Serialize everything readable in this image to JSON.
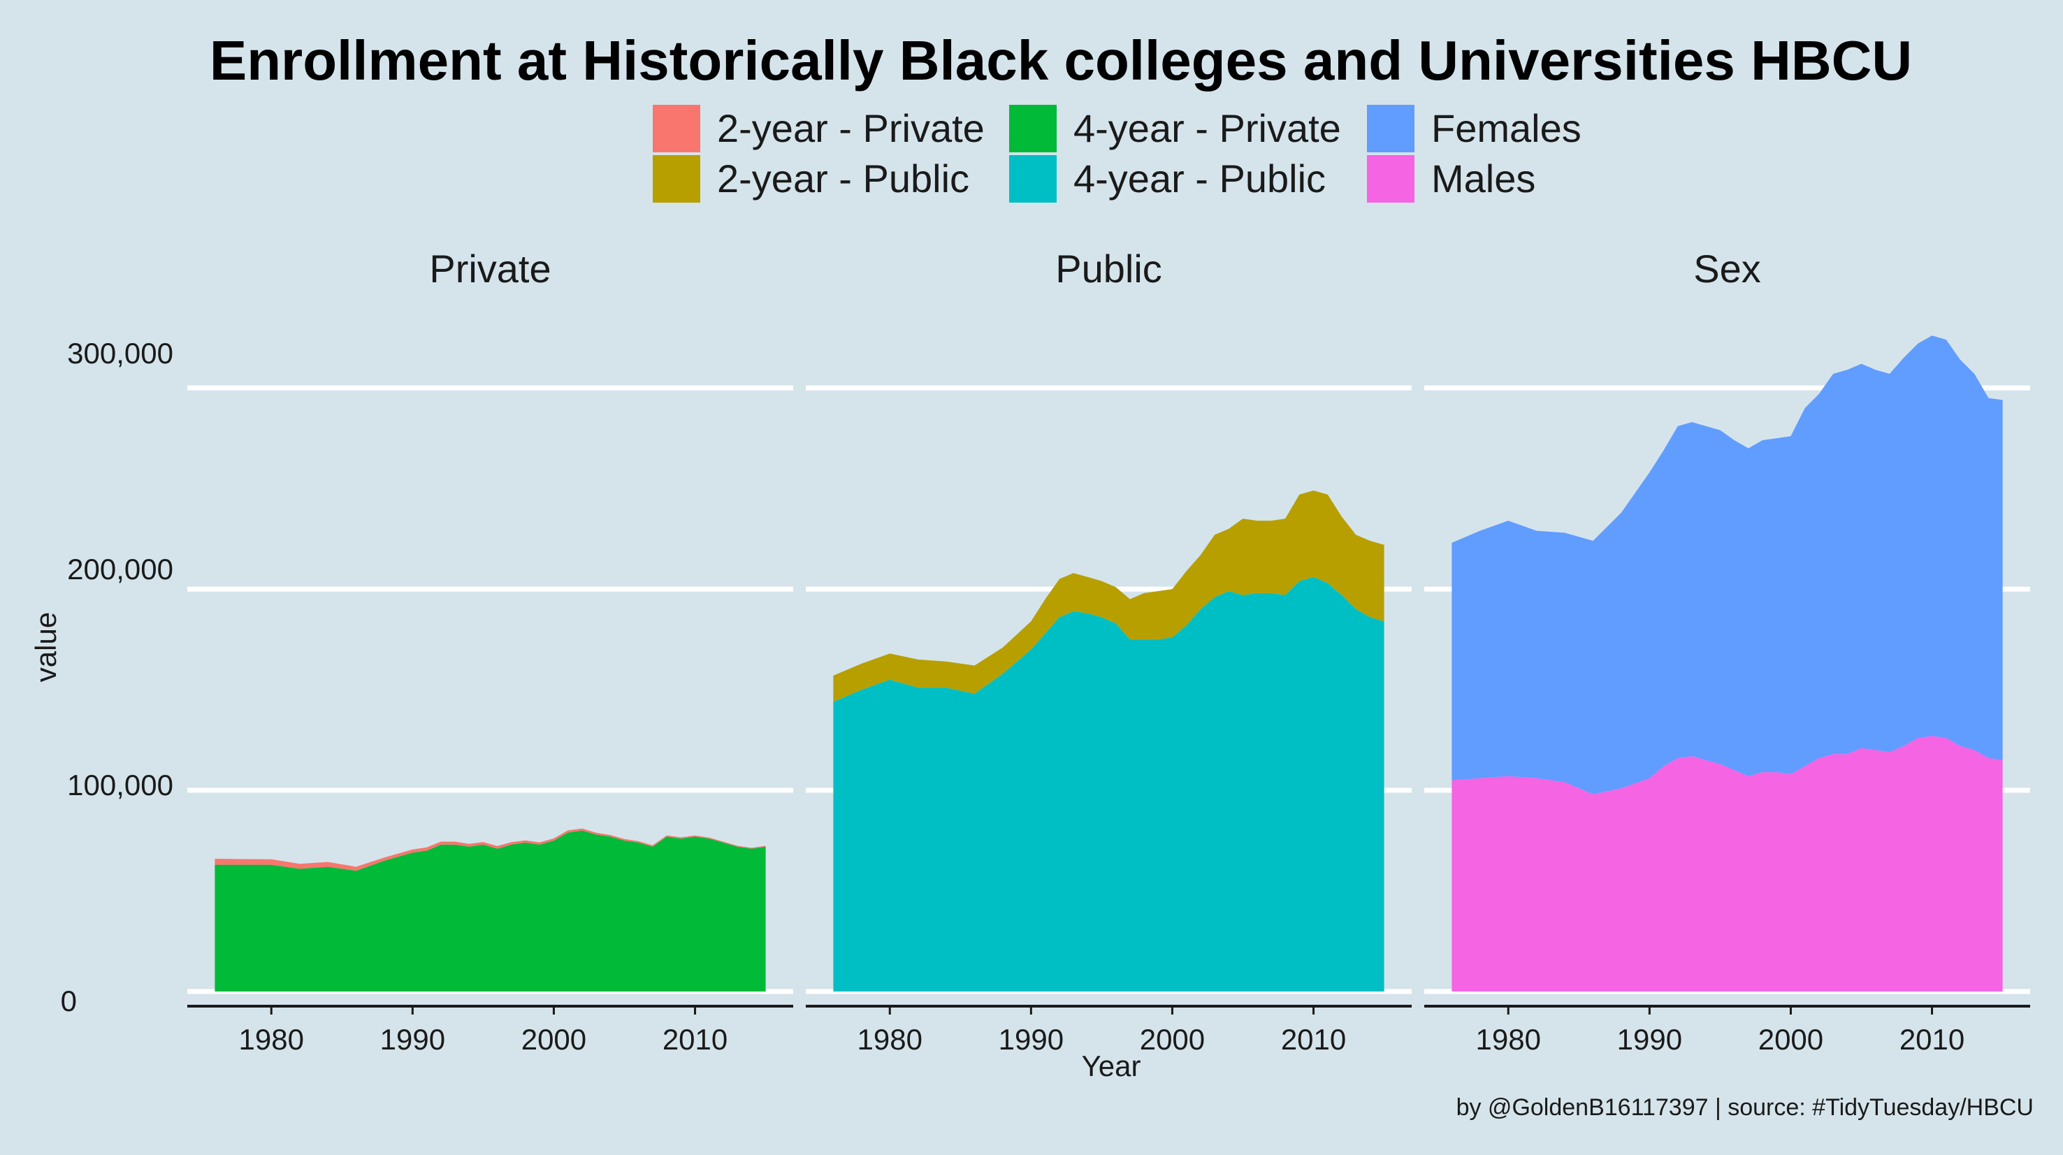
{
  "title": "Enrollment at Historically Black colleges and Universities HBCU",
  "caption": "by @GoldenB16117397 | source: #TidyTuesday/HBCU",
  "chart_data": {
    "type": "area",
    "stacked": true,
    "xlabel": "Year",
    "ylabel": "value",
    "ylim": [
      0,
      340000
    ],
    "y_ticks": [
      0,
      100000,
      200000,
      300000
    ],
    "y_tick_labels": [
      "0",
      "100,000",
      "200,000",
      "300,000"
    ],
    "x_ticks": [
      1980,
      1990,
      2000,
      2010
    ],
    "x_tick_labels": [
      "1980",
      "1990",
      "2000",
      "2010"
    ],
    "legend_position": "top",
    "legend": [
      {
        "name": "2-year - Private",
        "color": "#F8766D"
      },
      {
        "name": "2-year - Public",
        "color": "#B79F00"
      },
      {
        "name": "4-year - Private",
        "color": "#00BA38"
      },
      {
        "name": "4-year - Public",
        "color": "#00BFC4"
      },
      {
        "name": "Females",
        "color": "#619CFF"
      },
      {
        "name": "Males",
        "color": "#F564E3"
      }
    ],
    "x": [
      1976,
      1978,
      1980,
      1982,
      1984,
      1986,
      1988,
      1990,
      1991,
      1992,
      1993,
      1994,
      1995,
      1996,
      1997,
      1998,
      1999,
      2000,
      2001,
      2002,
      2003,
      2004,
      2005,
      2006,
      2007,
      2008,
      2009,
      2010,
      2011,
      2012,
      2013,
      2014,
      2015
    ],
    "panels": [
      {
        "name": "Private",
        "series": [
          {
            "name": "4-year - Private",
            "color": "#00BA38",
            "values": [
              63000,
              63000,
              63000,
              61000,
              62000,
              60000,
              65000,
              69000,
              70000,
              73000,
              73000,
              72000,
              73000,
              71000,
              73000,
              74000,
              73000,
              75000,
              79000,
              80000,
              78000,
              77000,
              75000,
              74000,
              72000,
              77000,
              76000,
              77000,
              76000,
              74000,
              72000,
              71000,
              72000
            ]
          },
          {
            "name": "2-year - Private",
            "color": "#F8766D",
            "values": [
              3000,
              2800,
              2700,
              2500,
              2400,
              2000,
              1600,
              1600,
              1600,
              1500,
              1500,
              1400,
              1300,
              1300,
              1200,
              1100,
              1100,
              1100,
              1100,
              1000,
              900,
              800,
              800,
              700,
              700,
              600,
              600,
              500,
              500,
              500,
              400,
              400,
              400
            ]
          }
        ]
      },
      {
        "name": "Public",
        "series": [
          {
            "name": "4-year - Public",
            "color": "#00BFC4",
            "values": [
              144000,
              150000,
              155000,
              151000,
              151000,
              148000,
              158000,
              170000,
              178000,
              186000,
              189000,
              188000,
              186000,
              183000,
              175000,
              175000,
              175000,
              176000,
              182000,
              190000,
              196000,
              199000,
              197000,
              198000,
              198000,
              197000,
              204000,
              206000,
              203000,
              197000,
              190000,
              186000,
              184000
            ]
          },
          {
            "name": "2-year - Public",
            "color": "#B79F00",
            "values": [
              13000,
              13000,
              13000,
              14000,
              13000,
              14000,
              13000,
              14000,
              17000,
              19000,
              19000,
              18000,
              18000,
              18000,
              20000,
              23000,
              24000,
              24000,
              27000,
              27000,
              31000,
              31000,
              38000,
              36000,
              36000,
              38000,
              43000,
              43000,
              44000,
              39000,
              37000,
              38000,
              38000
            ]
          }
        ]
      },
      {
        "name": "Sex",
        "series": [
          {
            "name": "Males",
            "color": "#F564E3",
            "values": [
              105000,
              106000,
              107000,
              106000,
              104000,
              98000,
              101000,
              106000,
              112000,
              116000,
              117000,
              115000,
              113000,
              110000,
              107000,
              109000,
              109000,
              108000,
              112000,
              116000,
              118000,
              118000,
              121000,
              120000,
              119000,
              122000,
              126000,
              127000,
              126000,
              122000,
              120000,
              116000,
              115000
            ]
          },
          {
            "name": "Females",
            "color": "#619CFF",
            "values": [
              118000,
              123000,
              127000,
              123000,
              124000,
              126000,
              137000,
              152000,
              157000,
              165000,
              166000,
              166000,
              166000,
              164000,
              163000,
              165000,
              166000,
              168000,
              178000,
              181000,
              189000,
              191000,
              191000,
              189000,
              188000,
              193000,
              196000,
              199000,
              198000,
              192000,
              187000,
              179000,
              179000
            ]
          }
        ]
      }
    ]
  }
}
